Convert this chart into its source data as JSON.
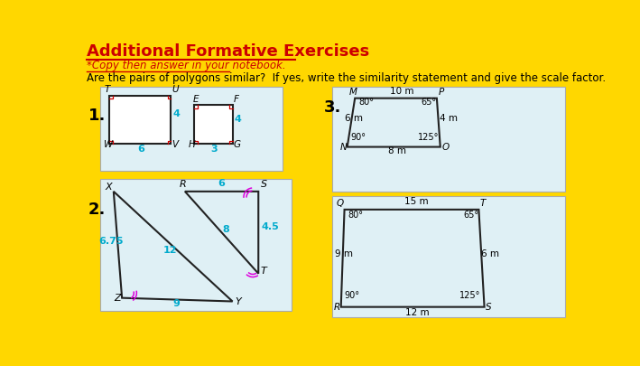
{
  "bg_color": "#FFD700",
  "title": "Additional Formative Exercises",
  "title_color": "#CC0000",
  "subtitle": "*Copy then answer in your notebook.",
  "question": "Are the pairs of polygons similar?  If yes, write the similarity statement and give the scale factor.",
  "card_color": "#DFF0F5",
  "dim_color": "#00AACC",
  "shape_color": "#222222",
  "angle_mark_color": "#CC0000",
  "angle_arc_color": "#CC00CC"
}
